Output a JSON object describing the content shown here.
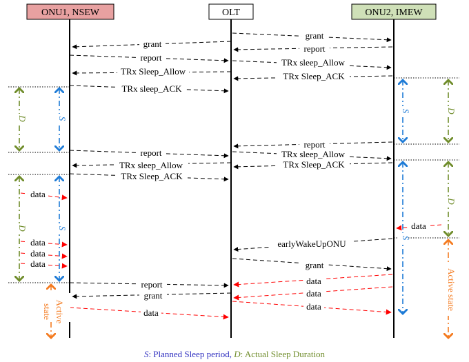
{
  "entities": {
    "onu1": "ONU1, NSEW",
    "olt": "OLT",
    "onu2": "ONU2, IMEW"
  },
  "messages": {
    "grant": "grant",
    "report": "report",
    "trx_sleep_allow_lower": "TRx sleep_Allow",
    "trx_sleep_allow_upper": "TRx Sleep_Allow",
    "trx_sleep_ack_lower": "TRx sleep_ACK",
    "trx_sleep_ack_upper": "TRx Sleep_ACK",
    "data": "data",
    "early_wakeup": "earlyWakeUpONU"
  },
  "intervals": {
    "s": "S",
    "d": "D",
    "active_state": "Active state",
    "active": "Active",
    "state": "state"
  },
  "caption": {
    "s_sym": "S",
    "s_text": ": Planned Sleep period, ",
    "d_sym": "D",
    "d_text": ": Actual Sleep Duration"
  },
  "colors": {
    "onu1_header": "#e8a1a1",
    "onu2_header": "#cfe0b8",
    "data_red": "#ff0000",
    "s_blue": "#1e7bd6",
    "d_green": "#6f8c2a",
    "active_orange": "#f47b20",
    "caption_blue": "#3030c0",
    "caption_green": "#6f8c2a"
  }
}
